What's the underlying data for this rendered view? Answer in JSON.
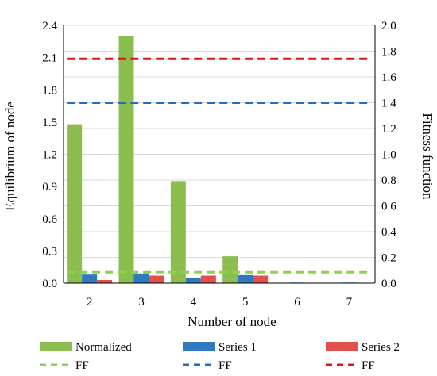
{
  "chart_data": {
    "type": "bar",
    "categories": [
      "2",
      "3",
      "4",
      "5",
      "6",
      "7"
    ],
    "xlabel": "Number of node",
    "ylabel": "Equilibrium of node",
    "y2label": "Fitness function",
    "ylim": [
      0,
      2.4
    ],
    "y2lim": [
      0,
      2.0
    ],
    "yticks": [
      "0.0",
      "0.3",
      "0.6",
      "0.9",
      "1.2",
      "1.5",
      "1.8",
      "2.1",
      "2.4"
    ],
    "y2ticks": [
      "0.0",
      "0.2",
      "0.4",
      "0.6",
      "0.8",
      "1.0",
      "1.2",
      "1.4",
      "1.6",
      "1.8",
      "2.0"
    ],
    "grid": true,
    "legend_position": "bottom",
    "bar_series": [
      {
        "name": "Normalized",
        "axis": "left",
        "color": "#8cbd4f",
        "values": [
          1.48,
          2.3,
          0.95,
          0.25,
          0.0,
          0.0
        ]
      },
      {
        "name": "Series 1",
        "axis": "left",
        "color": "#2e79bf",
        "values": [
          0.08,
          0.09,
          0.05,
          0.075,
          0.005,
          0.005
        ]
      },
      {
        "name": "Series 2",
        "axis": "left",
        "color": "#e0504d",
        "values": [
          0.03,
          0.07,
          0.07,
          0.07,
          0.0,
          0.0
        ]
      }
    ],
    "line_series": [
      {
        "name": "FF",
        "axis": "right",
        "style": "dashed",
        "color": "#8cd24a",
        "x_range": [
          "2",
          "7"
        ],
        "value": 0.085
      },
      {
        "name": "FF",
        "axis": "right",
        "style": "dashed",
        "color": "#1f6fc0",
        "x_range": [
          "2",
          "7"
        ],
        "value": 1.4
      },
      {
        "name": "FF",
        "axis": "right",
        "style": "dashed",
        "color": "#e01414",
        "x_range": [
          "2",
          "7"
        ],
        "value": 1.74
      }
    ]
  }
}
